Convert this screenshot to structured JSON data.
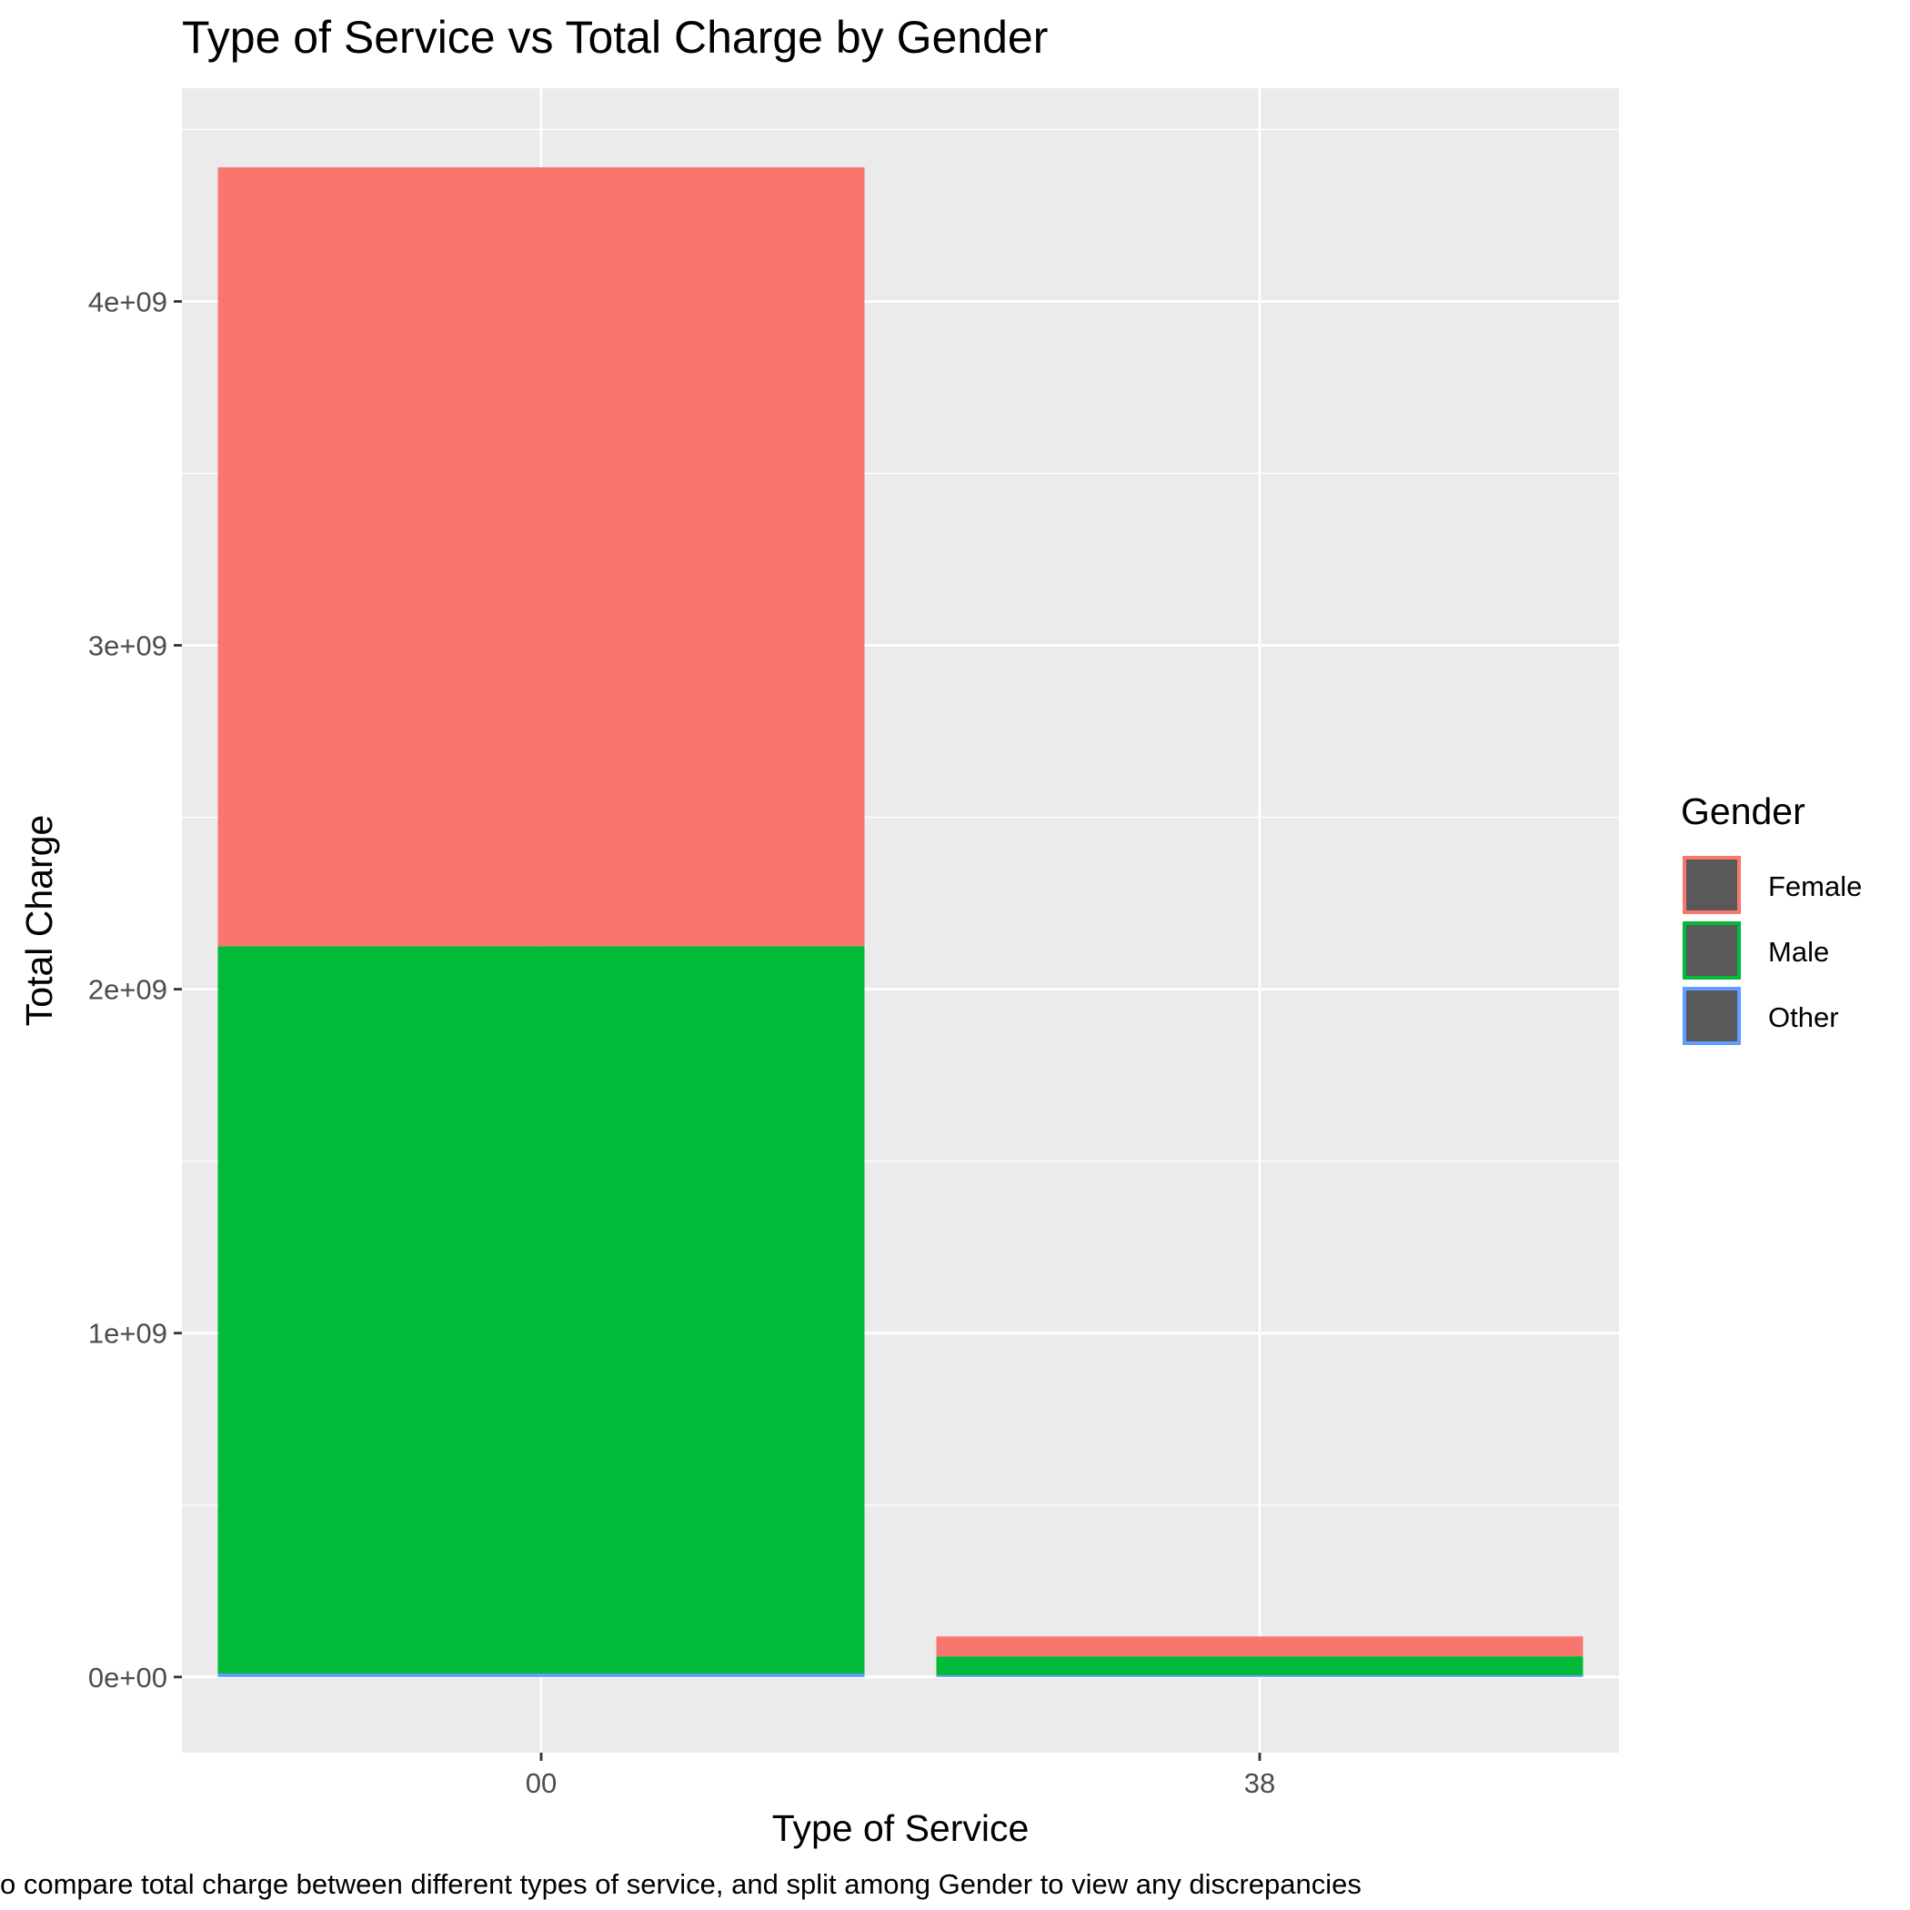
{
  "chart_data": {
    "type": "bar",
    "stacked": true,
    "title": "Type of Service vs Total Charge by Gender",
    "xlabel": "Type of Service",
    "ylabel": "Total Charge",
    "caption": "o compare total charge between different types of service, and split among Gender to view any discrepancies",
    "categories": [
      "00",
      "38"
    ],
    "ylim": [
      -220000000,
      4620000000
    ],
    "yticks": [
      0,
      1000000000,
      2000000000,
      3000000000,
      4000000000
    ],
    "ytick_labels": [
      "0e+00",
      "1e+09",
      "2e+09",
      "3e+09",
      "4e+09"
    ],
    "grid": true,
    "legend": {
      "title": "Gender",
      "position": "right"
    },
    "series": [
      {
        "name": "Other",
        "color": "#619CFF",
        "values": [
          10000000,
          5000000
        ]
      },
      {
        "name": "Male",
        "color": "#00BA38",
        "values": [
          2115000000,
          55000000
        ]
      },
      {
        "name": "Female",
        "color": "#F8766D",
        "values": [
          2265000000,
          58000000
        ]
      }
    ],
    "legend_order": [
      "Female",
      "Male",
      "Other"
    ],
    "panel_background": "#EBEBEB"
  }
}
